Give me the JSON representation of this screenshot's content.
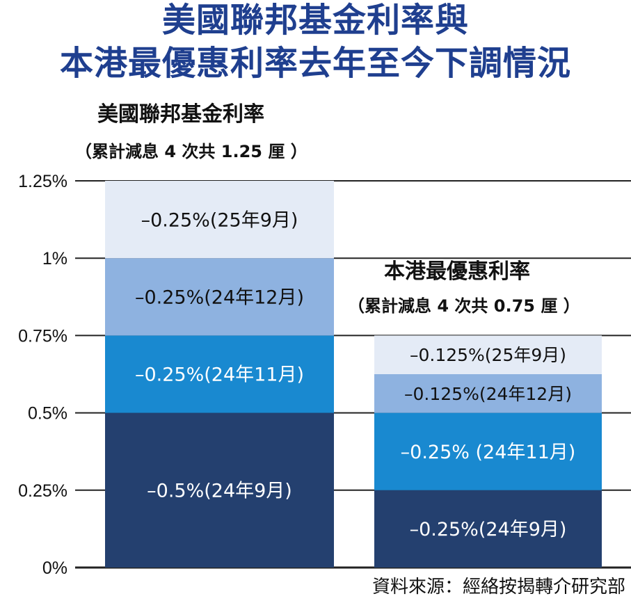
{
  "title_line1": "美國聯邦基金利率與",
  "title_line2": "本港最優惠利率去年至今下調情況",
  "source": "資料來源：經絡按揭轉介研究部",
  "colors": {
    "title": "#1f3f8f",
    "lightest": "#e4ebf6",
    "light": "#8eb2e0",
    "medium": "#1989d0",
    "dark": "#24406f"
  },
  "chart_data": {
    "type": "bar",
    "stacked": true,
    "ylim": [
      0,
      1.25
    ],
    "yticks": [
      "0%",
      "0.25%",
      "0.5%",
      "0.75%",
      "1%",
      "1.25%"
    ],
    "ytick_values": [
      0,
      0.25,
      0.5,
      0.75,
      1,
      1.25
    ],
    "grid": true,
    "bars": [
      {
        "name": "美國聯邦基金利率",
        "note": "（累計減息 4 次共 1.25 厘 ）",
        "segments": [
          {
            "value": 0.5,
            "label": "–0.5%(24年9月)",
            "color": "#24406f"
          },
          {
            "value": 0.25,
            "label": "–0.25%(24年11月)",
            "color": "#1989d0"
          },
          {
            "value": 0.25,
            "label": "–0.25%(24年12月)",
            "color": "#8eb2e0"
          },
          {
            "value": 0.25,
            "label": "–0.25%(25年9月)",
            "color": "#e4ebf6"
          }
        ]
      },
      {
        "name": "本港最優惠利率",
        "note": "（累計減息 4 次共 0.75 厘 ）",
        "segments": [
          {
            "value": 0.25,
            "label": "–0.25%(24年9月)",
            "color": "#24406f"
          },
          {
            "value": 0.25,
            "label": "–0.25% (24年11月)",
            "color": "#1989d0"
          },
          {
            "value": 0.125,
            "label": "–0.125%(24年12月)",
            "color": "#8eb2e0"
          },
          {
            "value": 0.125,
            "label": "–0.125%(25年9月)",
            "color": "#e4ebf6"
          }
        ]
      }
    ]
  }
}
